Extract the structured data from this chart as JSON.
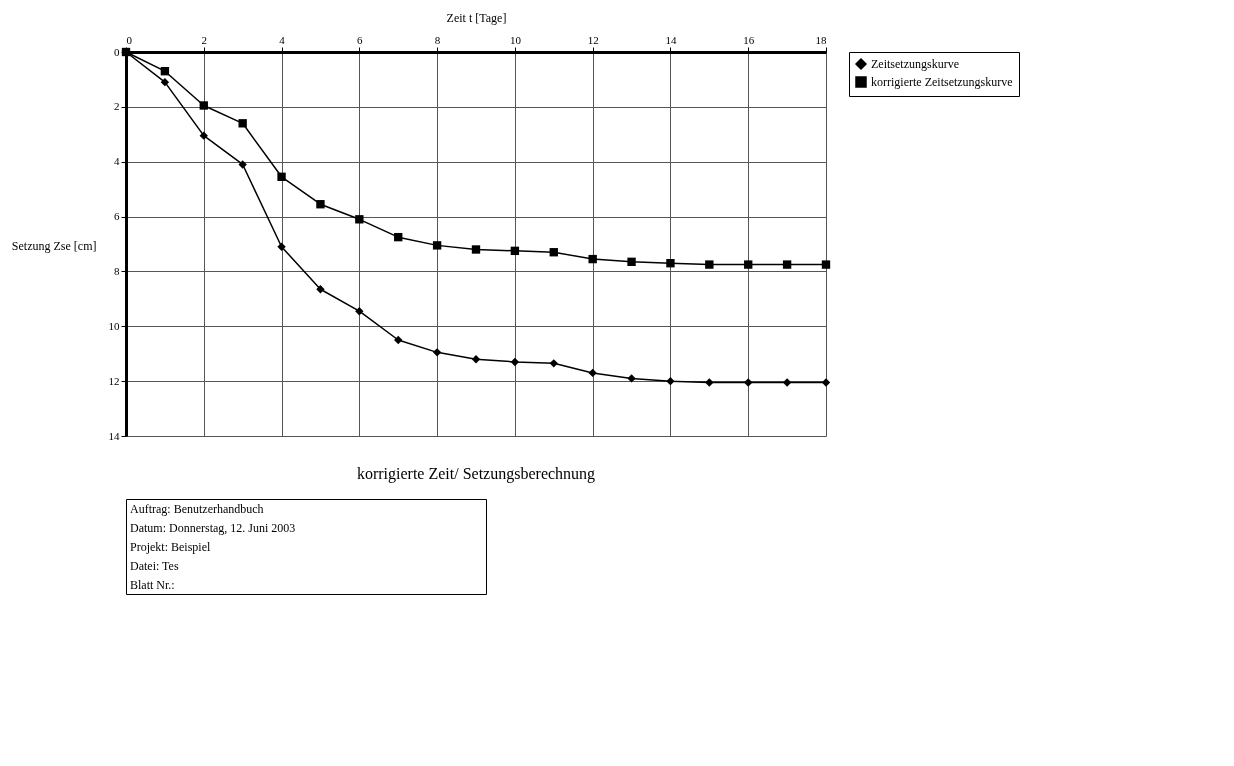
{
  "chart_data": {
    "type": "line",
    "title": "korrigierte Zeit/ Setzungsberechnung",
    "xlabel": "Zeit t  [Tage]",
    "ylabel": "Setzung Zse [cm]",
    "x": [
      0,
      1,
      2,
      3,
      4,
      5,
      6,
      7,
      8,
      9,
      10,
      11,
      12,
      13,
      14,
      15,
      16,
      17,
      18
    ],
    "series": [
      {
        "name": "Zeitsetzungskurve",
        "color": "#000000",
        "marker": "diamond",
        "values": [
          0,
          1.1,
          3.05,
          4.1,
          7.1,
          8.65,
          9.45,
          10.5,
          10.95,
          11.2,
          11.3,
          11.35,
          11.7,
          11.9,
          12.0,
          12.05,
          12.05,
          12.05,
          12.05
        ]
      },
      {
        "name": "korrigierte Zeitsetzungskurve",
        "color": "#000000",
        "marker": "square",
        "values": [
          0,
          0.7,
          1.95,
          2.6,
          4.55,
          5.55,
          6.1,
          6.75,
          7.05,
          7.2,
          7.25,
          7.3,
          7.55,
          7.65,
          7.7,
          7.75,
          7.75,
          7.75,
          7.75
        ]
      }
    ],
    "xlim": [
      0,
      18
    ],
    "xticks": [
      0,
      2,
      4,
      6,
      8,
      10,
      12,
      14,
      16,
      18
    ],
    "ylim": [
      14,
      0
    ],
    "yticks": [
      0,
      2,
      4,
      6,
      8,
      10,
      12,
      14
    ],
    "grid": true,
    "legend": "right",
    "line_style": "solid",
    "annotations": [
      "Auftrag: Benutzerhandbuch",
      "Datum: Donnerstag, 12. Juni 2003",
      "Projekt: Beispiel",
      "Datei: Tes",
      "Blatt Nr.:"
    ]
  }
}
